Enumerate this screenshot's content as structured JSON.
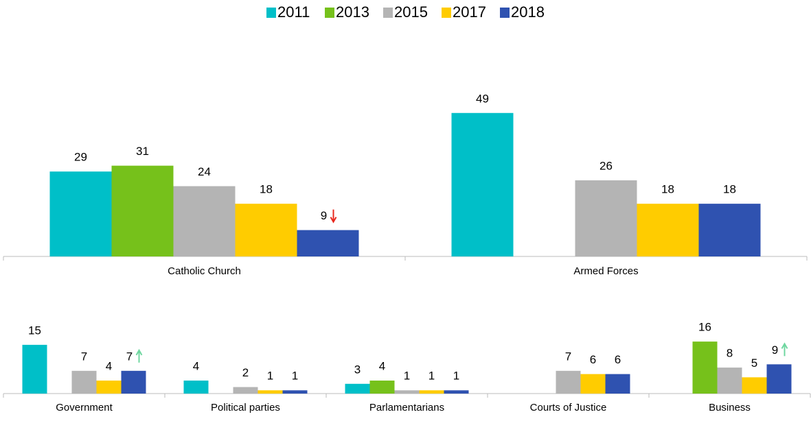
{
  "chart_data": [
    {
      "type": "bar",
      "categories": [
        "Catholic Church",
        "Armed Forces"
      ],
      "series": [
        {
          "name": "2011",
          "color": "#00bfc8",
          "values": [
            29,
            49
          ]
        },
        {
          "name": "2013",
          "color": "#76c11b",
          "values": [
            31,
            null
          ]
        },
        {
          "name": "2015",
          "color": "#b4b4b4",
          "values": [
            24,
            26
          ]
        },
        {
          "name": "2017",
          "color": "#ffcc00",
          "values": [
            18,
            18
          ]
        },
        {
          "name": "2018",
          "color": "#2f52b0",
          "values": [
            9,
            18
          ]
        }
      ]
    },
    {
      "type": "bar",
      "categories": [
        "Government",
        "Political parties",
        "Parlamentarians",
        "Courts of Justice",
        "Business"
      ],
      "series": [
        {
          "values": [
            15,
            4,
            3,
            null,
            null
          ]
        },
        {
          "values": [
            null,
            null,
            4,
            null,
            16
          ]
        },
        {
          "values": [
            7,
            2,
            1,
            7,
            8
          ]
        },
        {
          "values": [
            4,
            1,
            1,
            6,
            5
          ]
        },
        {
          "values": [
            7,
            1,
            1,
            6,
            9
          ]
        }
      ]
    }
  ]
}
